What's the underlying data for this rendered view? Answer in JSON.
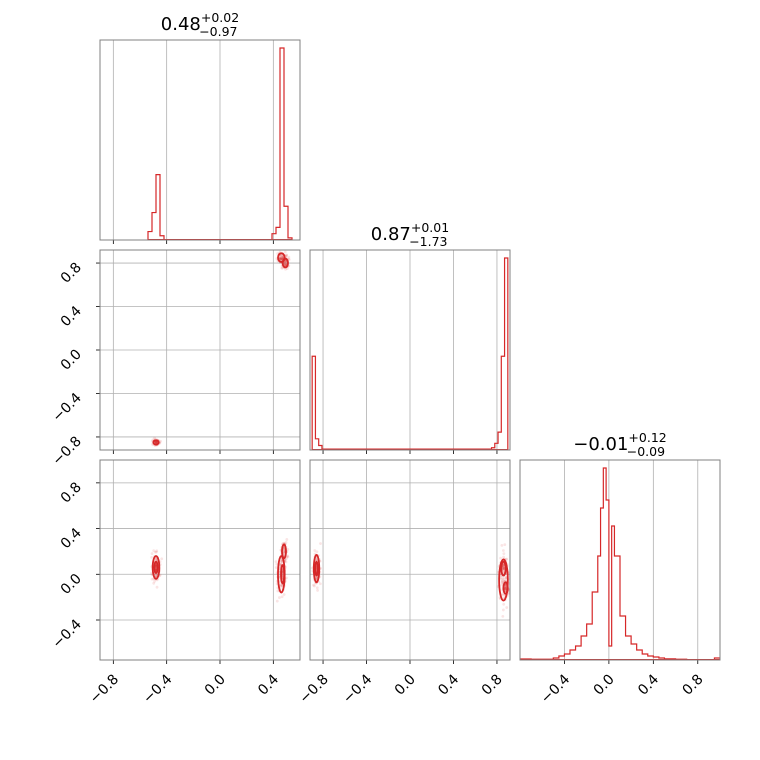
{
  "colors": {
    "series": "#d62728",
    "grid": "#b0b0b0",
    "frame": "#808080"
  },
  "chart_data": [
    {
      "type": "histogram",
      "name": "param-0-marginal",
      "grid": true,
      "title": {
        "value": "0.48",
        "plus": "+0.02",
        "minus": "−0.97"
      },
      "xlim": [
        -0.9,
        0.6
      ],
      "bins": [
        [
          -0.54,
          -0.51,
          0.04
        ],
        [
          -0.51,
          -0.48,
          0.13
        ],
        [
          -0.48,
          -0.45,
          0.31
        ],
        [
          -0.45,
          -0.42,
          0.02
        ],
        [
          0.39,
          0.42,
          0.03
        ],
        [
          0.42,
          0.45,
          0.06
        ],
        [
          0.45,
          0.48,
          0.91
        ],
        [
          0.48,
          0.51,
          0.16
        ],
        [
          0.51,
          0.54,
          0.01
        ]
      ]
    },
    {
      "type": "scatter-contour",
      "name": "param-0-vs-param-1",
      "grid": true,
      "xlim": [
        -0.9,
        0.6
      ],
      "ylim": [
        -0.92,
        0.92
      ],
      "yticks": [
        "−0.8",
        "−0.4",
        "0.0",
        "0.4",
        "0.8"
      ],
      "yvalues": [
        -0.8,
        -0.4,
        0.0,
        0.4,
        0.8
      ],
      "contours": [
        [
          0.46,
          0.85,
          0.025,
          0.04
        ],
        [
          0.49,
          0.8,
          0.02,
          0.04
        ],
        [
          -0.48,
          -0.85,
          0.02,
          0.02
        ]
      ]
    },
    {
      "type": "histogram",
      "name": "param-1-marginal",
      "grid": true,
      "title": {
        "value": "0.87",
        "plus": "+0.01",
        "minus": "−1.73"
      },
      "xlim": [
        -0.92,
        0.92
      ],
      "bins": [
        [
          -0.9,
          -0.87,
          0.42
        ],
        [
          -0.87,
          -0.84,
          0.05
        ],
        [
          -0.84,
          -0.81,
          0.02
        ],
        [
          -0.81,
          0.75,
          0.004
        ],
        [
          0.75,
          0.78,
          0.01
        ],
        [
          0.78,
          0.81,
          0.03
        ],
        [
          0.81,
          0.84,
          0.08
        ],
        [
          0.84,
          0.87,
          0.42
        ],
        [
          0.87,
          0.9,
          0.86
        ]
      ]
    },
    {
      "type": "scatter-contour",
      "name": "param-0-vs-param-2",
      "grid": true,
      "xlim": [
        -0.9,
        0.6
      ],
      "ylim": [
        -0.75,
        1.0
      ],
      "xticks": [
        "−0.8",
        "−0.4",
        "0.0",
        "0.4"
      ],
      "xvalues": [
        -0.8,
        -0.4,
        0.0,
        0.4
      ],
      "yticks": [
        "−0.4",
        "0.0",
        "0.4",
        "0.8"
      ],
      "yvalues": [
        -0.4,
        0.0,
        0.4,
        0.8
      ],
      "contours": [
        [
          -0.48,
          0.06,
          0.025,
          0.1
        ],
        [
          -0.48,
          0.06,
          0.012,
          0.05
        ],
        [
          0.46,
          0.0,
          0.025,
          0.16
        ],
        [
          0.47,
          0.0,
          0.012,
          0.08
        ],
        [
          0.48,
          0.2,
          0.015,
          0.06
        ]
      ]
    },
    {
      "type": "scatter-contour",
      "name": "param-1-vs-param-2",
      "grid": true,
      "xlim": [
        -0.92,
        0.92
      ],
      "ylim": [
        -0.75,
        1.0
      ],
      "xticks": [
        "−0.8",
        "−0.4",
        "0.0",
        "0.4",
        "0.8"
      ],
      "xvalues": [
        -0.8,
        -0.4,
        0.0,
        0.4,
        0.8
      ],
      "contours": [
        [
          -0.86,
          0.05,
          0.025,
          0.12
        ],
        [
          -0.86,
          0.05,
          0.012,
          0.06
        ],
        [
          0.86,
          -0.05,
          0.04,
          0.18
        ],
        [
          0.86,
          0.05,
          0.02,
          0.06
        ],
        [
          0.88,
          -0.12,
          0.02,
          0.05
        ]
      ]
    },
    {
      "type": "histogram",
      "name": "param-2-marginal",
      "grid": true,
      "title": {
        "value": "−0.01",
        "plus": "+0.12",
        "minus": "−0.09"
      },
      "xlim": [
        -0.8,
        1.0
      ],
      "xticks": [
        "−0.4",
        "0.0",
        "0.4",
        "0.8"
      ],
      "xvalues": [
        -0.4,
        0.0,
        0.4,
        0.8
      ],
      "bins": [
        [
          -0.8,
          -0.7,
          0.005
        ],
        [
          -0.7,
          -0.5,
          0.004
        ],
        [
          -0.5,
          -0.45,
          0.01
        ],
        [
          -0.45,
          -0.4,
          0.02
        ],
        [
          -0.4,
          -0.35,
          0.03
        ],
        [
          -0.35,
          -0.3,
          0.05
        ],
        [
          -0.3,
          -0.25,
          0.07
        ],
        [
          -0.25,
          -0.2,
          0.12
        ],
        [
          -0.2,
          -0.15,
          0.18
        ],
        [
          -0.15,
          -0.1,
          0.34
        ],
        [
          -0.1,
          -0.075,
          0.52
        ],
        [
          -0.075,
          -0.05,
          0.76
        ],
        [
          -0.05,
          -0.025,
          0.96
        ],
        [
          -0.025,
          0.0,
          0.8
        ],
        [
          0.0,
          0.025,
          0.07
        ],
        [
          0.025,
          0.05,
          0.67
        ],
        [
          0.05,
          0.1,
          0.52
        ],
        [
          0.1,
          0.15,
          0.22
        ],
        [
          0.15,
          0.2,
          0.12
        ],
        [
          0.2,
          0.25,
          0.08
        ],
        [
          0.25,
          0.3,
          0.05
        ],
        [
          0.3,
          0.35,
          0.03
        ],
        [
          0.35,
          0.4,
          0.02
        ],
        [
          0.4,
          0.45,
          0.015
        ],
        [
          0.45,
          0.5,
          0.01
        ],
        [
          0.5,
          0.6,
          0.006
        ],
        [
          0.6,
          0.7,
          0.004
        ],
        [
          0.7,
          0.95,
          0.002
        ],
        [
          0.95,
          1.0,
          0.01
        ]
      ]
    }
  ]
}
